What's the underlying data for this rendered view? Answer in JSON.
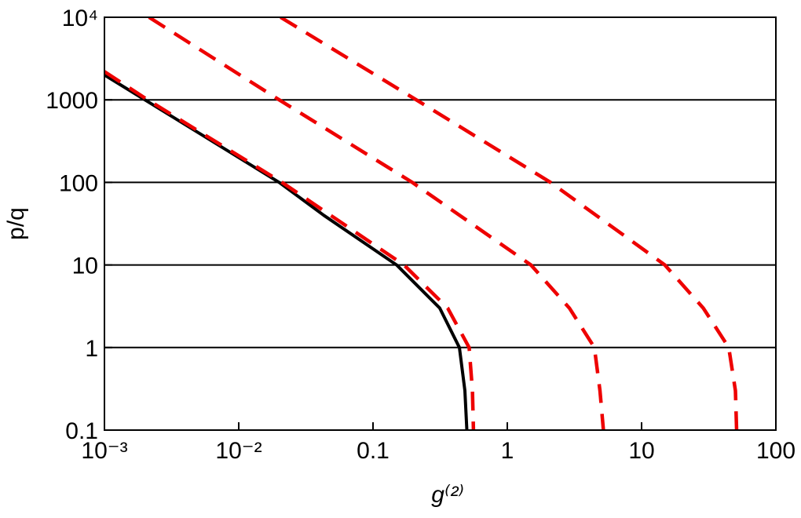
{
  "chart_data": {
    "type": "line",
    "xlabel": "g⁽²⁾",
    "ylabel": "p/q",
    "xscale": "log",
    "yscale": "log",
    "xlim": [
      0.001,
      100
    ],
    "ylim": [
      0.1,
      10000
    ],
    "xticks": [
      {
        "value": 0.001,
        "label": "10⁻³"
      },
      {
        "value": 0.01,
        "label": "10⁻²"
      },
      0.1,
      1,
      10,
      100
    ],
    "yticks": [
      0.1,
      1,
      10,
      100,
      1000,
      {
        "value": 10000,
        "label": "10⁴"
      }
    ],
    "grid": true,
    "series": [
      {
        "color": "#000000",
        "style": "solid",
        "x": [
          0.001,
          0.002,
          0.02,
          0.043,
          0.15,
          0.314,
          0.44,
          0.483,
          0.5
        ],
        "values": [
          2000,
          1000,
          100,
          40,
          10,
          3,
          1,
          0.3,
          0.1
        ]
      },
      {
        "color": "#ee0000",
        "style": "dashed",
        "x": [
          0.001,
          0.0021,
          0.021,
          0.17,
          0.36,
          0.52,
          0.55,
          0.56
        ],
        "values": [
          2200,
          1000,
          100,
          10,
          3,
          1,
          0.3,
          0.1
        ]
      },
      {
        "color": "#ee0000",
        "style": "dashed",
        "x": [
          0.00215,
          0.02,
          0.196,
          1.5,
          2.9,
          4.45,
          4.9,
          5.2
        ],
        "values": [
          10000,
          1000,
          100,
          10,
          3,
          1,
          0.3,
          0.1
        ]
      },
      {
        "color": "#ee0000",
        "style": "dashed",
        "x": [
          0.0205,
          0.21,
          2.1,
          14.9,
          28.8,
          44.6,
          50,
          51
        ],
        "values": [
          10000,
          1000,
          100,
          10,
          3,
          1,
          0.3,
          0.1
        ]
      }
    ]
  }
}
